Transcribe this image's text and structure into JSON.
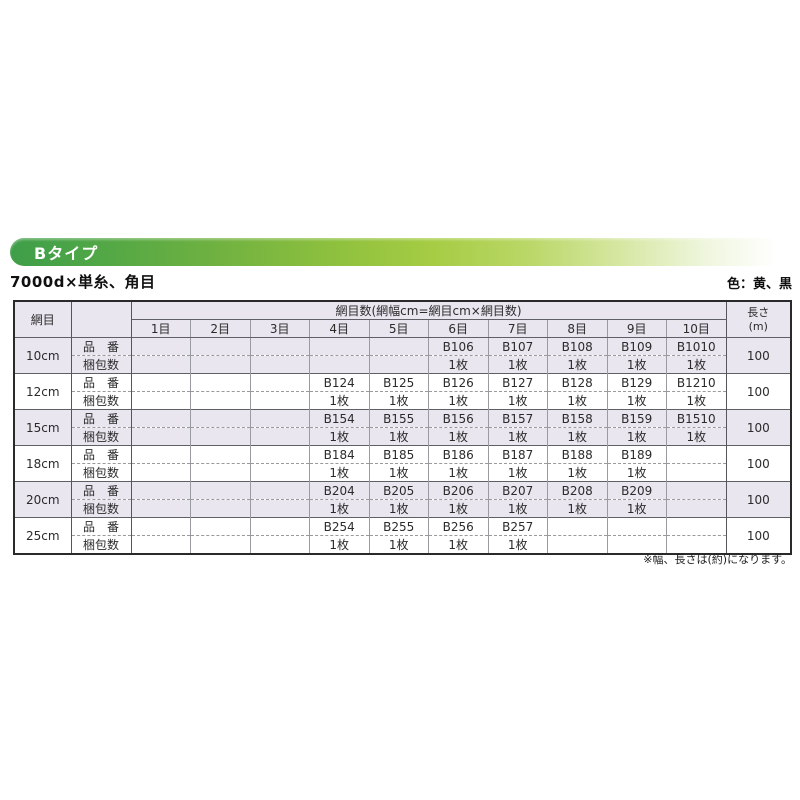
{
  "banner": {
    "label": "Bタイプ"
  },
  "header": {
    "title": "7000d×単糸、角目",
    "color_note": "色：黄、黒"
  },
  "table": {
    "mesh_header": "網目",
    "span_header": "網目数(網幅cm=網目cm×網目数)",
    "col_headers": [
      "1目",
      "2目",
      "3目",
      "4目",
      "5目",
      "6目",
      "7目",
      "8目",
      "9目",
      "10目"
    ],
    "length_header": {
      "line1": "長さ",
      "line2": "(m)"
    },
    "sublabels": {
      "product": "品　番",
      "package": "梱包数"
    },
    "rows": [
      {
        "size": "10cm",
        "products": [
          "",
          "",
          "",
          "",
          "",
          "B106",
          "B107",
          "B108",
          "B109",
          "B1010"
        ],
        "packages": [
          "",
          "",
          "",
          "",
          "",
          "1枚",
          "1枚",
          "1枚",
          "1枚",
          "1枚"
        ],
        "length": "100"
      },
      {
        "size": "12cm",
        "products": [
          "",
          "",
          "",
          "B124",
          "B125",
          "B126",
          "B127",
          "B128",
          "B129",
          "B1210"
        ],
        "packages": [
          "",
          "",
          "",
          "1枚",
          "1枚",
          "1枚",
          "1枚",
          "1枚",
          "1枚",
          "1枚"
        ],
        "length": "100"
      },
      {
        "size": "15cm",
        "products": [
          "",
          "",
          "",
          "B154",
          "B155",
          "B156",
          "B157",
          "B158",
          "B159",
          "B1510"
        ],
        "packages": [
          "",
          "",
          "",
          "1枚",
          "1枚",
          "1枚",
          "1枚",
          "1枚",
          "1枚",
          "1枚"
        ],
        "length": "100"
      },
      {
        "size": "18cm",
        "products": [
          "",
          "",
          "",
          "B184",
          "B185",
          "B186",
          "B187",
          "B188",
          "B189",
          ""
        ],
        "packages": [
          "",
          "",
          "",
          "1枚",
          "1枚",
          "1枚",
          "1枚",
          "1枚",
          "1枚",
          ""
        ],
        "length": "100"
      },
      {
        "size": "20cm",
        "products": [
          "",
          "",
          "",
          "B204",
          "B205",
          "B206",
          "B207",
          "B208",
          "B209",
          ""
        ],
        "packages": [
          "",
          "",
          "",
          "1枚",
          "1枚",
          "1枚",
          "1枚",
          "1枚",
          "1枚",
          ""
        ],
        "length": "100"
      },
      {
        "size": "25cm",
        "products": [
          "",
          "",
          "",
          "B254",
          "B255",
          "B256",
          "B257",
          "",
          "",
          ""
        ],
        "packages": [
          "",
          "",
          "",
          "1枚",
          "1枚",
          "1枚",
          "1枚",
          "",
          "",
          ""
        ],
        "length": "100"
      }
    ]
  },
  "footnote": "※幅、長さは(約)になります。",
  "colors": {
    "row_shade": "#e9e6ef",
    "banner_green": "#3f9e49",
    "banner_yellow_green": "#a6cc44",
    "table_border": "#2a2a2a"
  }
}
